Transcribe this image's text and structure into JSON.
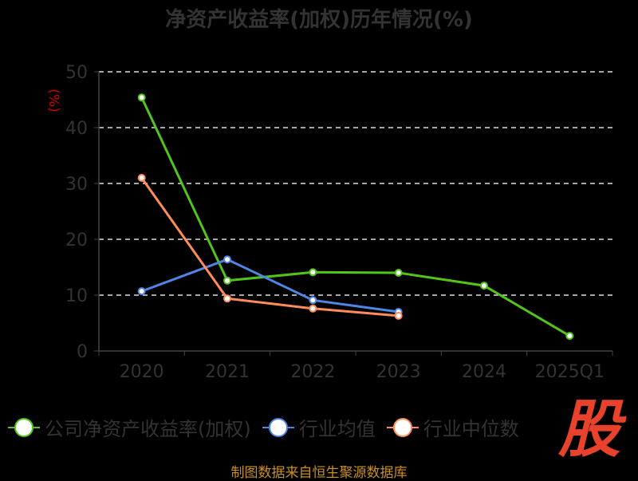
{
  "chart_data": {
    "type": "line",
    "title": "净资产收益率(加权)历年情况(%)",
    "ylabel": "(%)",
    "xlabel": "",
    "ylim": [
      0,
      50
    ],
    "yticks": [
      0,
      10,
      20,
      30,
      40,
      50
    ],
    "categories": [
      "2020",
      "2021",
      "2022",
      "2023",
      "2024",
      "2025Q1"
    ],
    "grid": true,
    "legend_position": "bottom",
    "series": [
      {
        "name": "公司净资产收益率(加权)",
        "color": "#52c41a",
        "values": [
          45.4,
          12.6,
          14.1,
          14.0,
          11.7,
          2.7
        ]
      },
      {
        "name": "行业均值",
        "color": "#4e86e4",
        "values": [
          10.7,
          16.4,
          9.1,
          7.0,
          null,
          null
        ]
      },
      {
        "name": "行业中位数",
        "color": "#ff8c5a",
        "values": [
          31.0,
          9.4,
          7.6,
          6.3,
          null,
          null
        ]
      }
    ]
  },
  "source": "制图数据来自恒生聚源数据库",
  "logo_text": "股"
}
